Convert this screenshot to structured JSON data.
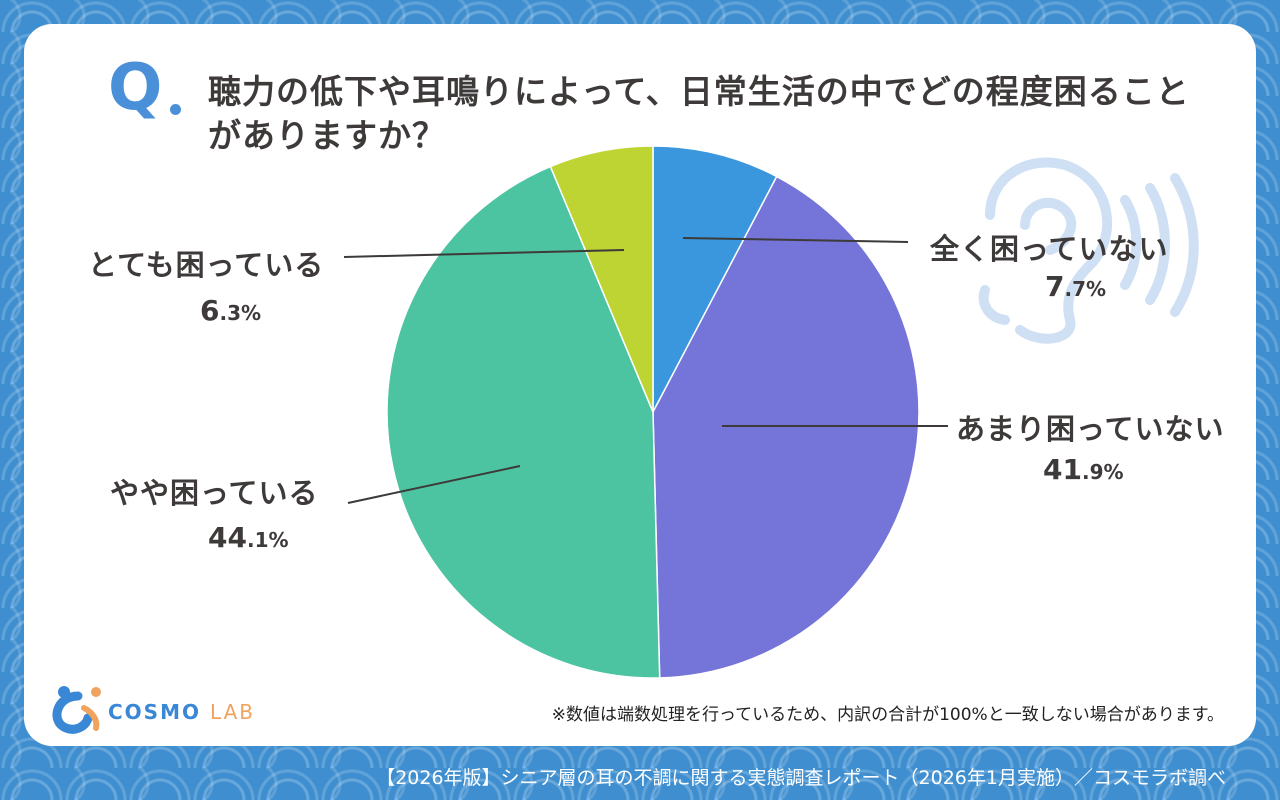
{
  "question": {
    "mark": "Q",
    "text": "聴力の低下や耳鳴りによって、日常生活の中でどの程度困ることがありますか？"
  },
  "chart_data": {
    "type": "pie",
    "slices": [
      {
        "label": "全く困っていない",
        "value": 7.7,
        "color": "#3a97dd"
      },
      {
        "label": "あまり困っていない",
        "value": 41.9,
        "color": "#7574d8"
      },
      {
        "label": "やや困っている",
        "value": 44.1,
        "color": "#4cc4a1"
      },
      {
        "label": "とても困っている",
        "value": 6.3,
        "color": "#bed432"
      }
    ],
    "start_angle": "12 o'clock, clockwise"
  },
  "labels": {
    "s0": {
      "name": "全く困っていない",
      "int": "7",
      "dec": ".7%"
    },
    "s1": {
      "name": "あまり困っていない",
      "int": "41",
      "dec": ".9%"
    },
    "s2": {
      "name": "やや困っている",
      "int": "44",
      "dec": ".1%"
    },
    "s3": {
      "name": "とても困っている",
      "int": "6",
      "dec": ".3%"
    }
  },
  "note": "※数値は端数処理を行っているため、内訳の合計が100%と一致しない場合があります。",
  "logo": {
    "part1": "COSMO",
    "part2": "LAB"
  },
  "footer": "【2026年版】シニア層の耳の不調に関する実態調査レポート（2026年1月実施）／コスモラボ調べ",
  "colors": {
    "accent": "#4a90d9",
    "logo_blue": "#3a87d6",
    "logo_orange": "#f0a35e",
    "ear_icon": "#cfe0f4"
  }
}
